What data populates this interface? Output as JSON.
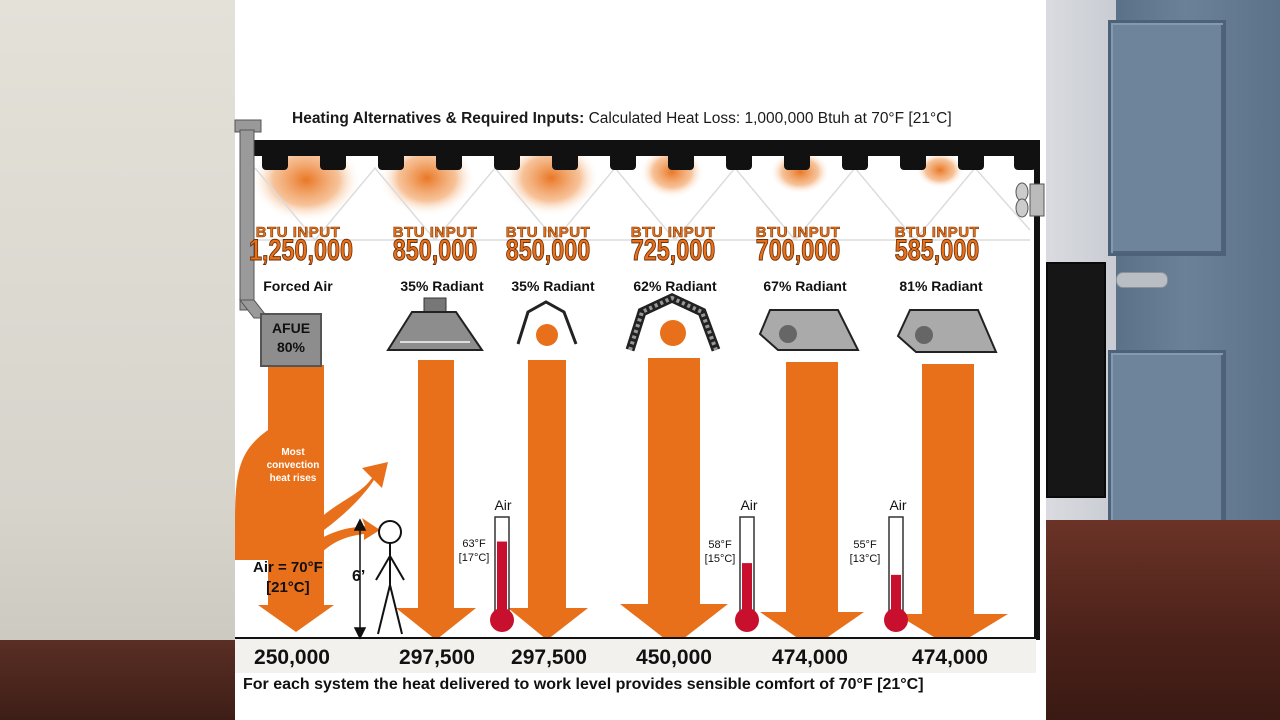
{
  "title": {
    "bold": "Heating Alternatives & Required Inputs:",
    "rest": "Calculated Heat Loss: 1,000,000 Btuh at 70°F [21°C]"
  },
  "btu_header": "BTU INPUT",
  "systems": [
    {
      "btu": "1,250,000",
      "type": "Forced Air",
      "delivered": "250,000"
    },
    {
      "btu": "850,000",
      "type": "35% Radiant",
      "delivered": "297,500"
    },
    {
      "btu": "850,000",
      "type": "35% Radiant",
      "delivered": "297,500"
    },
    {
      "btu": "725,000",
      "type": "62% Radiant",
      "delivered": "450,000"
    },
    {
      "btu": "700,000",
      "type": "67% Radiant",
      "delivered": "474,000"
    },
    {
      "btu": "585,000",
      "type": "81% Radiant",
      "delivered": "474,000"
    }
  ],
  "afue": {
    "label": "AFUE",
    "value": "80%"
  },
  "convection_note": "Most convection heat rises",
  "air_temp": {
    "line1": "Air = 70°F",
    "line2": "[21°C]"
  },
  "height_label": "6’",
  "thermometers": [
    {
      "air": "Air",
      "f": "63°F",
      "c": "[17°C]",
      "level": 0.77
    },
    {
      "air": "Air",
      "f": "58°F",
      "c": "[15°C]",
      "level": 0.55
    },
    {
      "air": "Air",
      "f": "55°F",
      "c": "[13°C]",
      "level": 0.43
    }
  ],
  "footer": "For each system the heat delivered to work level provides sensible comfort of 70°F [21°C]",
  "colors": {
    "orange": "#e8701a",
    "red": "#c8102e",
    "gray": "#8d8d8d"
  }
}
